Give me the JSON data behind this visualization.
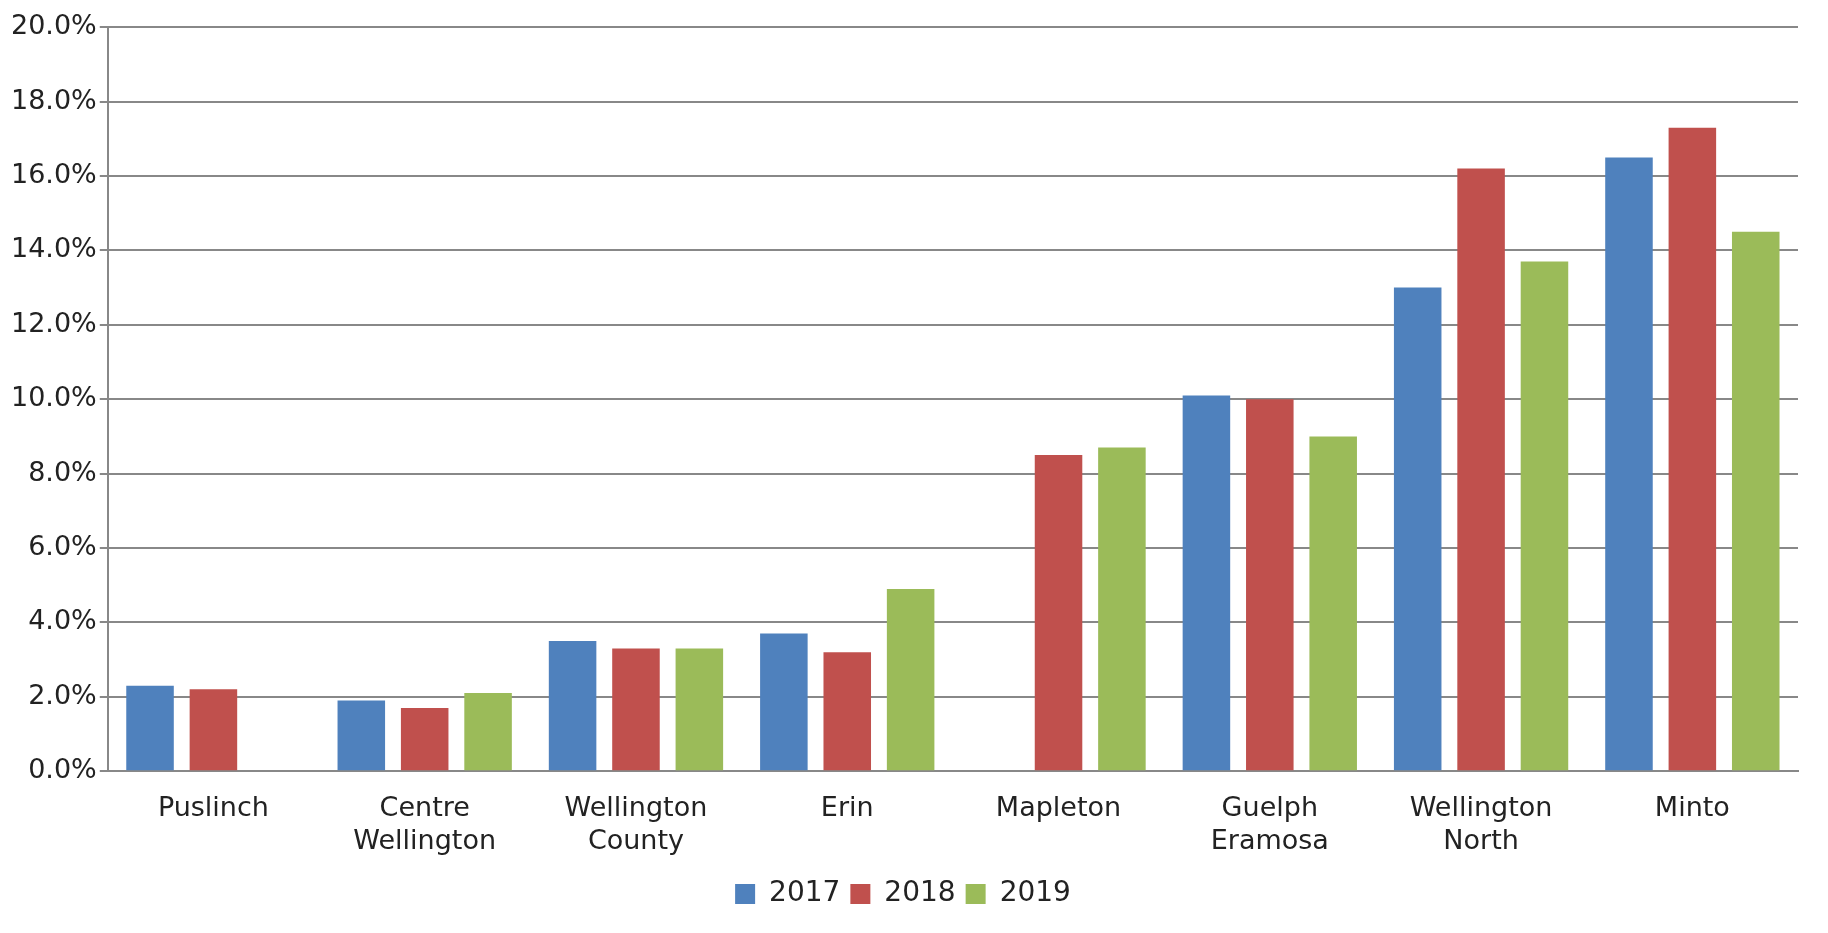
{
  "chart_data": {
    "type": "bar",
    "categories": [
      "Puslinch",
      "Centre Wellington",
      "Wellington County",
      "Erin",
      "Mapleton",
      "Guelph Eramosa",
      "Wellington North",
      "Minto"
    ],
    "series": [
      {
        "name": "2017",
        "color": "#4f81bd",
        "values": [
          2.3,
          1.9,
          3.5,
          3.7,
          null,
          10.1,
          13.0,
          16.5
        ]
      },
      {
        "name": "2018",
        "color": "#c0504d",
        "values": [
          2.2,
          1.7,
          3.3,
          3.2,
          8.5,
          10.0,
          16.2,
          17.3
        ]
      },
      {
        "name": "2019",
        "color": "#9bbb59",
        "values": [
          null,
          2.1,
          3.3,
          4.9,
          8.7,
          9.0,
          13.7,
          14.5
        ]
      }
    ],
    "ylim": [
      0,
      20
    ],
    "yticks": [
      {
        "value": 0,
        "label": "0.0%"
      },
      {
        "value": 2,
        "label": "2.0%"
      },
      {
        "value": 4,
        "label": "4.0%"
      },
      {
        "value": 6,
        "label": "6.0%"
      },
      {
        "value": 8,
        "label": "8.0%"
      },
      {
        "value": 10,
        "label": "10.0%"
      },
      {
        "value": 12,
        "label": "12.0%"
      },
      {
        "value": 14,
        "label": "14.0%"
      },
      {
        "value": 16,
        "label": "16.0%"
      },
      {
        "value": 18,
        "label": "18.0%"
      },
      {
        "value": 20,
        "label": "20.0%"
      }
    ],
    "grid": "y",
    "legend": "bottom"
  }
}
